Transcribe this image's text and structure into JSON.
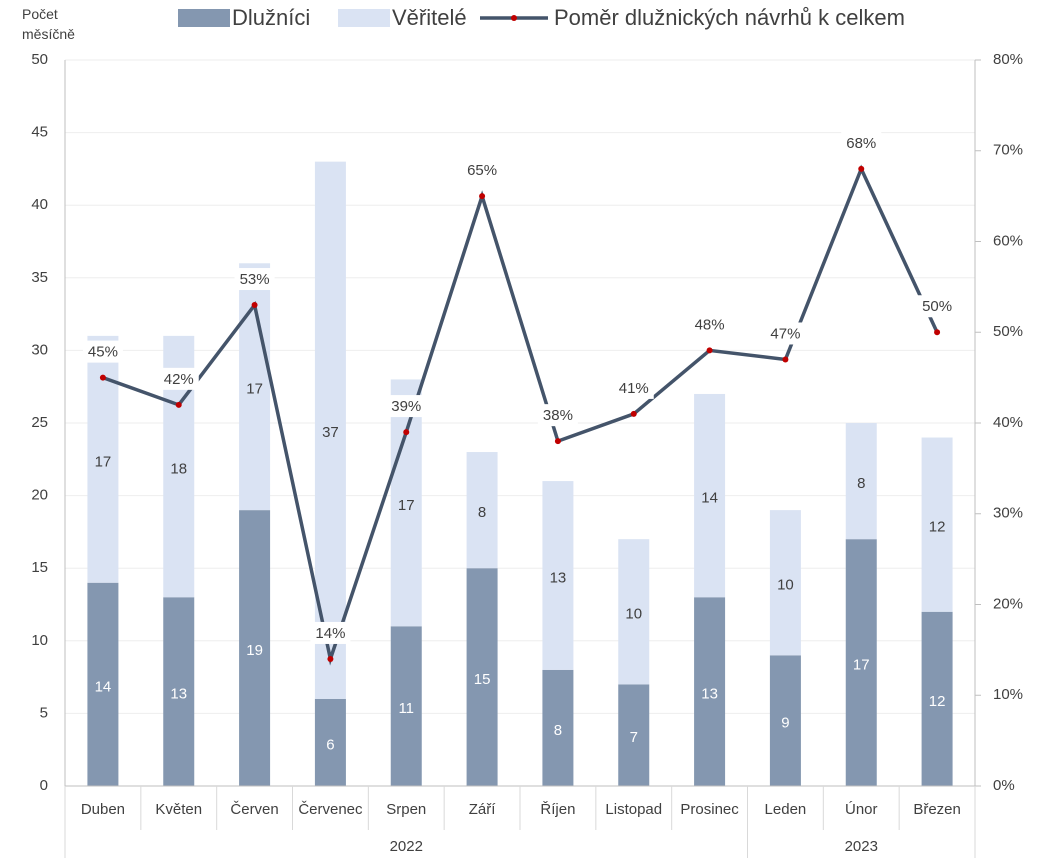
{
  "chart_data": {
    "type": "stacked_bar_line",
    "y_title": "Počet měsíčně",
    "categories": [
      "Duben",
      "Květen",
      "Červen",
      "Červenec",
      "Srpen",
      "Září",
      "Říjen",
      "Listopad",
      "Prosinec",
      "Leden",
      "Únor",
      "Březen"
    ],
    "x_groups": [
      {
        "label": "2022",
        "span": 9
      },
      {
        "label": "2023",
        "span": 3
      }
    ],
    "series": [
      {
        "name": "Dlužníci",
        "color": "#8497b0",
        "values": [
          14,
          13,
          19,
          6,
          11,
          15,
          8,
          7,
          13,
          9,
          17,
          12
        ]
      },
      {
        "name": "Věřitelé",
        "color": "#dae3f3",
        "values": [
          17,
          18,
          17,
          37,
          17,
          8,
          13,
          10,
          14,
          10,
          8,
          12
        ]
      },
      {
        "name": "Poměr dlužnických návrhů k celkem",
        "color": "#44546a",
        "marker_color": "#c00000",
        "axis": "y2",
        "values": [
          45,
          42,
          53,
          14,
          39,
          65,
          38,
          41,
          48,
          47,
          68,
          50
        ],
        "value_labels": [
          "45%",
          "42%",
          "53%",
          "14%",
          "39%",
          "65%",
          "38%",
          "41%",
          "48%",
          "47%",
          "68%",
          "50%"
        ]
      }
    ],
    "ylim": [
      0,
      50
    ],
    "yticks": [
      0,
      5,
      10,
      15,
      20,
      25,
      30,
      35,
      40,
      45,
      50
    ],
    "y2lim": [
      0,
      80
    ],
    "y2ticks": [
      {
        "value": 0,
        "label": "0%"
      },
      {
        "value": 10,
        "label": "10%"
      },
      {
        "value": 20,
        "label": "20%"
      },
      {
        "value": 30,
        "label": "30%"
      },
      {
        "value": 40,
        "label": "40%"
      },
      {
        "value": 50,
        "label": "50%"
      },
      {
        "value": 60,
        "label": "60%"
      },
      {
        "value": 70,
        "label": "70%"
      },
      {
        "value": 80,
        "label": "80%"
      }
    ],
    "grid": true,
    "legend": "top"
  }
}
